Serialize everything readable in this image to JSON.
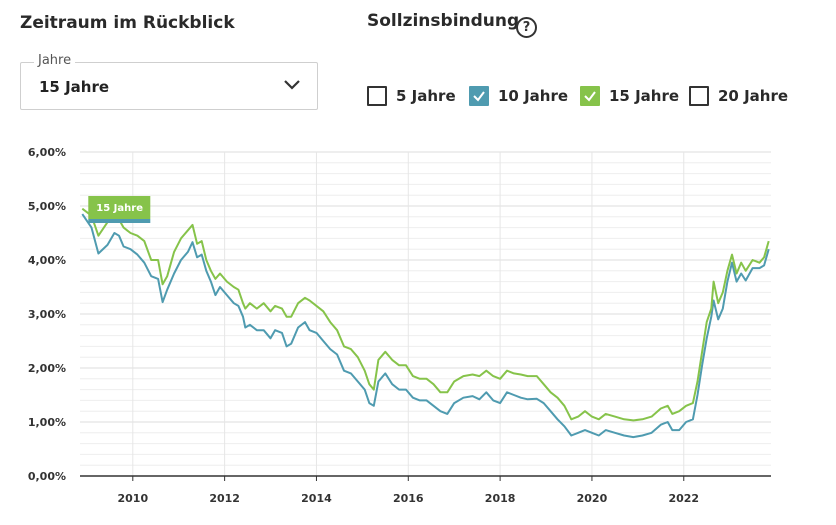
{
  "header": {
    "period_title": "Zeitraum im Rückblick",
    "binding_title": "Sollzinsbindung",
    "help_icon": "?"
  },
  "period_select": {
    "label": "Jahre",
    "value": "15 Jahre"
  },
  "checkboxes": [
    {
      "label": "5 Jahre",
      "checked": false,
      "color": "#ffffff"
    },
    {
      "label": "10 Jahre",
      "checked": true,
      "color": "#4f9bb0"
    },
    {
      "label": "15 Jahre",
      "checked": true,
      "color": "#86c34a"
    },
    {
      "label": "20 Jahre",
      "checked": false,
      "color": "#ffffff"
    }
  ],
  "colors": {
    "series_10": "#4f9bb0",
    "series_15": "#86c34a",
    "grid": "#e6e6e6",
    "axis": "#333333"
  },
  "chart_data": {
    "type": "line",
    "title": "",
    "xlabel": "",
    "ylabel": "",
    "ylim": [
      0,
      6
    ],
    "xlim": [
      2008.85,
      2023.9
    ],
    "y_ticks": [
      "0,00%",
      "1,00%",
      "2,00%",
      "3,00%",
      "4,00%",
      "5,00%",
      "6,00%"
    ],
    "x_ticks": [
      "2010",
      "2012",
      "2014",
      "2016",
      "2018",
      "2020",
      "2022"
    ],
    "tooltip": {
      "label": "15 Jahre",
      "x": 2008.9,
      "y": 4.95
    },
    "series": [
      {
        "name": "10 Jahre",
        "color": "#4f9bb0",
        "points": [
          [
            2008.9,
            4.85
          ],
          [
            2009.1,
            4.6
          ],
          [
            2009.25,
            4.12
          ],
          [
            2009.45,
            4.28
          ],
          [
            2009.6,
            4.5
          ],
          [
            2009.7,
            4.45
          ],
          [
            2009.8,
            4.25
          ],
          [
            2009.95,
            4.2
          ],
          [
            2010.1,
            4.1
          ],
          [
            2010.25,
            3.95
          ],
          [
            2010.4,
            3.7
          ],
          [
            2010.55,
            3.65
          ],
          [
            2010.65,
            3.22
          ],
          [
            2010.75,
            3.45
          ],
          [
            2010.9,
            3.75
          ],
          [
            2011.05,
            4.0
          ],
          [
            2011.2,
            4.15
          ],
          [
            2011.3,
            4.33
          ],
          [
            2011.4,
            4.05
          ],
          [
            2011.5,
            4.1
          ],
          [
            2011.6,
            3.8
          ],
          [
            2011.7,
            3.6
          ],
          [
            2011.8,
            3.35
          ],
          [
            2011.9,
            3.5
          ],
          [
            2012.05,
            3.35
          ],
          [
            2012.2,
            3.2
          ],
          [
            2012.3,
            3.15
          ],
          [
            2012.4,
            2.95
          ],
          [
            2012.45,
            2.75
          ],
          [
            2012.55,
            2.8
          ],
          [
            2012.7,
            2.7
          ],
          [
            2012.85,
            2.7
          ],
          [
            2013.0,
            2.55
          ],
          [
            2013.1,
            2.7
          ],
          [
            2013.25,
            2.65
          ],
          [
            2013.35,
            2.4
          ],
          [
            2013.45,
            2.45
          ],
          [
            2013.6,
            2.75
          ],
          [
            2013.75,
            2.85
          ],
          [
            2013.85,
            2.7
          ],
          [
            2014.0,
            2.65
          ],
          [
            2014.15,
            2.5
          ],
          [
            2014.3,
            2.35
          ],
          [
            2014.45,
            2.25
          ],
          [
            2014.6,
            1.95
          ],
          [
            2014.75,
            1.9
          ],
          [
            2014.9,
            1.75
          ],
          [
            2015.05,
            1.6
          ],
          [
            2015.15,
            1.35
          ],
          [
            2015.25,
            1.3
          ],
          [
            2015.35,
            1.75
          ],
          [
            2015.5,
            1.9
          ],
          [
            2015.65,
            1.7
          ],
          [
            2015.8,
            1.6
          ],
          [
            2015.95,
            1.6
          ],
          [
            2016.1,
            1.45
          ],
          [
            2016.25,
            1.4
          ],
          [
            2016.4,
            1.4
          ],
          [
            2016.55,
            1.3
          ],
          [
            2016.7,
            1.2
          ],
          [
            2016.85,
            1.15
          ],
          [
            2017.0,
            1.35
          ],
          [
            2017.2,
            1.45
          ],
          [
            2017.4,
            1.48
          ],
          [
            2017.55,
            1.42
          ],
          [
            2017.7,
            1.55
          ],
          [
            2017.85,
            1.4
          ],
          [
            2018.0,
            1.35
          ],
          [
            2018.15,
            1.55
          ],
          [
            2018.3,
            1.5
          ],
          [
            2018.45,
            1.45
          ],
          [
            2018.6,
            1.42
          ],
          [
            2018.8,
            1.43
          ],
          [
            2018.95,
            1.35
          ],
          [
            2019.1,
            1.2
          ],
          [
            2019.25,
            1.05
          ],
          [
            2019.4,
            0.92
          ],
          [
            2019.55,
            0.75
          ],
          [
            2019.7,
            0.8
          ],
          [
            2019.85,
            0.85
          ],
          [
            2020.0,
            0.8
          ],
          [
            2020.15,
            0.75
          ],
          [
            2020.3,
            0.85
          ],
          [
            2020.5,
            0.8
          ],
          [
            2020.7,
            0.75
          ],
          [
            2020.9,
            0.72
          ],
          [
            2021.1,
            0.75
          ],
          [
            2021.3,
            0.8
          ],
          [
            2021.5,
            0.95
          ],
          [
            2021.65,
            1.0
          ],
          [
            2021.75,
            0.85
          ],
          [
            2021.9,
            0.85
          ],
          [
            2022.05,
            1.0
          ],
          [
            2022.2,
            1.05
          ],
          [
            2022.3,
            1.5
          ],
          [
            2022.4,
            2.05
          ],
          [
            2022.5,
            2.55
          ],
          [
            2022.6,
            2.95
          ],
          [
            2022.65,
            3.25
          ],
          [
            2022.75,
            2.9
          ],
          [
            2022.85,
            3.1
          ],
          [
            2022.95,
            3.6
          ],
          [
            2023.05,
            3.95
          ],
          [
            2023.15,
            3.6
          ],
          [
            2023.25,
            3.75
          ],
          [
            2023.35,
            3.62
          ],
          [
            2023.5,
            3.85
          ],
          [
            2023.65,
            3.85
          ],
          [
            2023.75,
            3.9
          ],
          [
            2023.85,
            4.2
          ]
        ]
      },
      {
        "name": "15 Jahre",
        "color": "#86c34a",
        "points": [
          [
            2008.9,
            4.95
          ],
          [
            2009.1,
            4.82
          ],
          [
            2009.25,
            4.45
          ],
          [
            2009.45,
            4.7
          ],
          [
            2009.6,
            4.85
          ],
          [
            2009.7,
            4.75
          ],
          [
            2009.8,
            4.6
          ],
          [
            2009.95,
            4.5
          ],
          [
            2010.1,
            4.45
          ],
          [
            2010.25,
            4.35
          ],
          [
            2010.4,
            4.0
          ],
          [
            2010.55,
            4.0
          ],
          [
            2010.65,
            3.55
          ],
          [
            2010.75,
            3.7
          ],
          [
            2010.9,
            4.15
          ],
          [
            2011.05,
            4.4
          ],
          [
            2011.2,
            4.55
          ],
          [
            2011.3,
            4.65
          ],
          [
            2011.4,
            4.3
          ],
          [
            2011.5,
            4.35
          ],
          [
            2011.6,
            4.0
          ],
          [
            2011.7,
            3.8
          ],
          [
            2011.8,
            3.65
          ],
          [
            2011.9,
            3.75
          ],
          [
            2012.05,
            3.6
          ],
          [
            2012.2,
            3.5
          ],
          [
            2012.3,
            3.45
          ],
          [
            2012.4,
            3.2
          ],
          [
            2012.45,
            3.1
          ],
          [
            2012.55,
            3.2
          ],
          [
            2012.7,
            3.1
          ],
          [
            2012.85,
            3.2
          ],
          [
            2013.0,
            3.05
          ],
          [
            2013.1,
            3.15
          ],
          [
            2013.25,
            3.1
          ],
          [
            2013.35,
            2.95
          ],
          [
            2013.45,
            2.95
          ],
          [
            2013.6,
            3.2
          ],
          [
            2013.75,
            3.3
          ],
          [
            2013.85,
            3.25
          ],
          [
            2014.0,
            3.15
          ],
          [
            2014.15,
            3.05
          ],
          [
            2014.3,
            2.85
          ],
          [
            2014.45,
            2.7
          ],
          [
            2014.6,
            2.4
          ],
          [
            2014.75,
            2.35
          ],
          [
            2014.9,
            2.2
          ],
          [
            2015.05,
            1.95
          ],
          [
            2015.15,
            1.7
          ],
          [
            2015.25,
            1.6
          ],
          [
            2015.35,
            2.15
          ],
          [
            2015.5,
            2.3
          ],
          [
            2015.65,
            2.15
          ],
          [
            2015.8,
            2.05
          ],
          [
            2015.95,
            2.05
          ],
          [
            2016.1,
            1.85
          ],
          [
            2016.25,
            1.8
          ],
          [
            2016.4,
            1.8
          ],
          [
            2016.55,
            1.7
          ],
          [
            2016.7,
            1.55
          ],
          [
            2016.85,
            1.55
          ],
          [
            2017.0,
            1.75
          ],
          [
            2017.2,
            1.85
          ],
          [
            2017.4,
            1.88
          ],
          [
            2017.55,
            1.85
          ],
          [
            2017.7,
            1.95
          ],
          [
            2017.85,
            1.85
          ],
          [
            2018.0,
            1.8
          ],
          [
            2018.15,
            1.95
          ],
          [
            2018.3,
            1.9
          ],
          [
            2018.45,
            1.88
          ],
          [
            2018.6,
            1.85
          ],
          [
            2018.8,
            1.85
          ],
          [
            2018.95,
            1.7
          ],
          [
            2019.1,
            1.55
          ],
          [
            2019.25,
            1.45
          ],
          [
            2019.4,
            1.3
          ],
          [
            2019.55,
            1.05
          ],
          [
            2019.7,
            1.1
          ],
          [
            2019.85,
            1.2
          ],
          [
            2020.0,
            1.1
          ],
          [
            2020.15,
            1.05
          ],
          [
            2020.3,
            1.15
          ],
          [
            2020.5,
            1.1
          ],
          [
            2020.7,
            1.05
          ],
          [
            2020.9,
            1.03
          ],
          [
            2021.1,
            1.05
          ],
          [
            2021.3,
            1.1
          ],
          [
            2021.5,
            1.25
          ],
          [
            2021.65,
            1.3
          ],
          [
            2021.75,
            1.15
          ],
          [
            2021.9,
            1.2
          ],
          [
            2022.05,
            1.3
          ],
          [
            2022.2,
            1.35
          ],
          [
            2022.3,
            1.75
          ],
          [
            2022.4,
            2.3
          ],
          [
            2022.5,
            2.85
          ],
          [
            2022.6,
            3.1
          ],
          [
            2022.65,
            3.6
          ],
          [
            2022.75,
            3.2
          ],
          [
            2022.85,
            3.4
          ],
          [
            2022.95,
            3.8
          ],
          [
            2023.05,
            4.1
          ],
          [
            2023.15,
            3.75
          ],
          [
            2023.25,
            3.95
          ],
          [
            2023.35,
            3.8
          ],
          [
            2023.5,
            4.0
          ],
          [
            2023.65,
            3.95
          ],
          [
            2023.75,
            4.05
          ],
          [
            2023.85,
            4.35
          ]
        ]
      }
    ]
  }
}
